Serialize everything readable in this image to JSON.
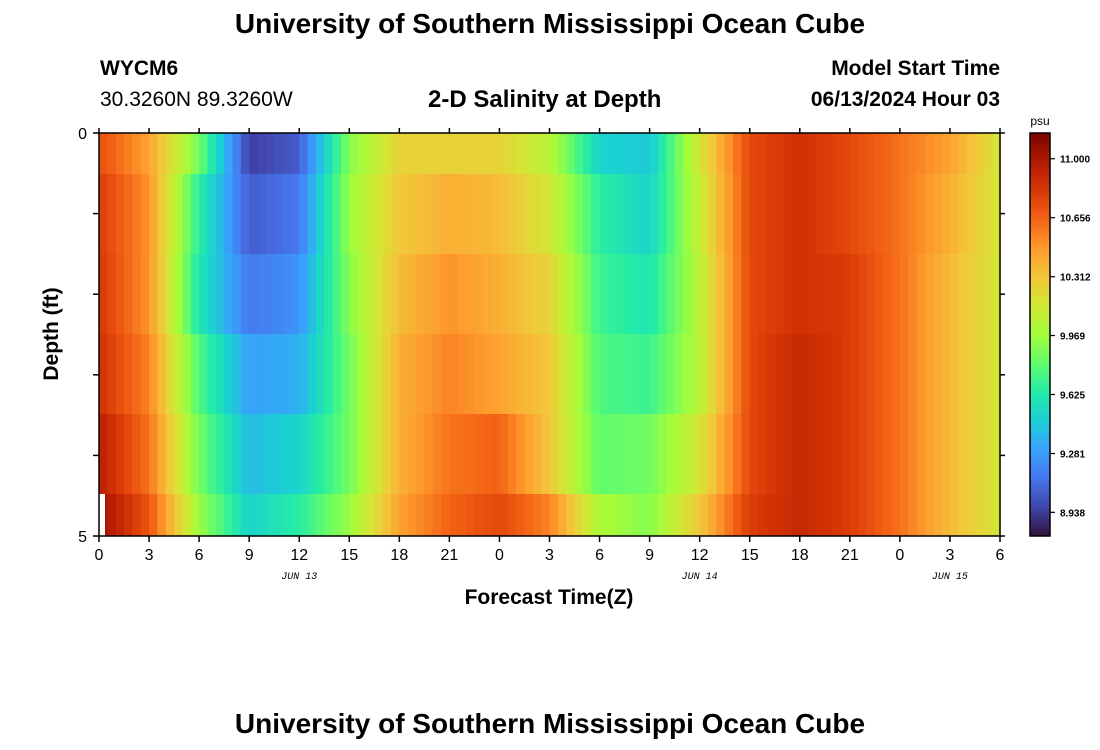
{
  "header": {
    "title": "University of Southern Mississippi Ocean Cube",
    "station_id": "WYCM6",
    "station_coords": "30.3260N  89.3260W",
    "subtitle": "2-D Salinity at Depth",
    "model_start_label": "Model Start Time",
    "model_start_value": "06/13/2024 Hour 03"
  },
  "footer": {
    "title": "University of Southern Mississippi Ocean Cube"
  },
  "chart_data": {
    "type": "heatmap",
    "title": "2-D Salinity at Depth",
    "xlabel": "Forecast Time(Z)",
    "ylabel": "Depth (ft)",
    "x_tick_labels": [
      "0",
      "3",
      "6",
      "9",
      "12",
      "15",
      "18",
      "21",
      "0",
      "3",
      "6",
      "9",
      "12",
      "15",
      "18",
      "21",
      "0",
      "3",
      "6"
    ],
    "date_labels": [
      "JUN 13",
      "JUN 14",
      "JUN 15"
    ],
    "y_tick_labels": [
      "0",
      "5"
    ],
    "ylim": [
      0,
      5
    ],
    "colorbar": {
      "unit": "psu",
      "min": 8.8,
      "max": 11.15,
      "tick_values": [
        11.0,
        10.656,
        10.312,
        9.969,
        9.625,
        9.281,
        8.938
      ],
      "tick_labels": [
        "11.000",
        "10.656",
        "10.312",
        "9.969",
        "9.625",
        "9.281",
        "8.938"
      ],
      "stops": [
        "#30123b",
        "#4145ab",
        "#4675ed",
        "#39a2fc",
        "#1bcfd4",
        "#24eca6",
        "#61fc6c",
        "#a4fc3b",
        "#d1e834",
        "#f3c63a",
        "#fe9b2d",
        "#f36315",
        "#d93806",
        "#b11901",
        "#7a0402"
      ]
    },
    "depth_rows": [
      "0-1 ft",
      "1-2 ft",
      "2-3 ft",
      "3-4 ft",
      "4-5 ft",
      "5 ft"
    ],
    "time_hours": [
      0,
      3,
      6,
      9,
      12,
      15,
      18,
      21,
      24,
      27,
      30,
      33,
      36,
      39,
      42,
      45,
      48,
      51,
      54
    ],
    "values": [
      [
        10.72,
        10.45,
        9.85,
        8.95,
        9.05,
        9.9,
        10.25,
        10.25,
        10.25,
        10.05,
        9.5,
        9.45,
        10.15,
        10.75,
        10.85,
        10.75,
        10.6,
        10.45,
        10.15
      ],
      [
        10.8,
        10.5,
        9.65,
        9.05,
        9.15,
        9.95,
        10.3,
        10.4,
        10.35,
        10.15,
        9.65,
        9.5,
        10.1,
        10.75,
        10.85,
        10.75,
        10.6,
        10.4,
        10.15
      ],
      [
        10.82,
        10.5,
        9.6,
        9.15,
        9.25,
        9.9,
        10.35,
        10.5,
        10.4,
        10.25,
        9.7,
        9.6,
        10.05,
        10.75,
        10.85,
        10.8,
        10.6,
        10.35,
        10.15
      ],
      [
        10.85,
        10.55,
        9.75,
        9.3,
        9.35,
        9.85,
        10.4,
        10.55,
        10.45,
        10.3,
        9.75,
        9.7,
        10.05,
        10.75,
        10.9,
        10.8,
        10.6,
        10.35,
        10.15
      ],
      [
        10.95,
        10.6,
        9.85,
        9.4,
        9.5,
        9.85,
        10.4,
        10.6,
        10.65,
        10.3,
        9.8,
        9.85,
        10.15,
        10.75,
        10.9,
        10.8,
        10.6,
        10.35,
        10.15
      ],
      [
        11.05,
        10.7,
        9.95,
        9.5,
        9.65,
        9.95,
        10.45,
        10.65,
        10.75,
        10.55,
        10.0,
        9.9,
        10.3,
        10.8,
        10.9,
        10.8,
        10.6,
        10.35,
        10.15
      ]
    ]
  }
}
